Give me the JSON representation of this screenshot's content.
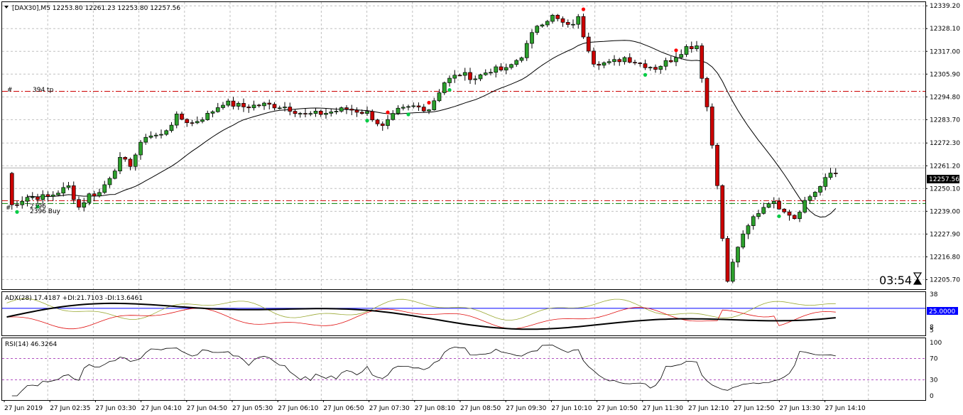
{
  "main_panel": {
    "header": "[DAX30],M5  12253.80 12261.23 12253.80 12257.56",
    "price_labels": [
      "12339.20",
      "12328.10",
      "12317.00",
      "12305.90",
      "12294.80",
      "12283.70",
      "12272.30",
      "12261.20",
      "12250.10",
      "12239.00",
      "12227.90",
      "12216.80",
      "12205.70"
    ],
    "current_price": "12257.56",
    "timer": "03:54",
    "line_labels": {
      "tp_hash": "#",
      "tp": "394 tp",
      "left_hash": "#",
      "left_a": "2396",
      "left_b": "2396 Buy"
    }
  },
  "adx_panel": {
    "header": "ADX(28) 17.4187 +DI:21.7103 -DI:13.6461",
    "scale": [
      "38",
      "23",
      "8",
      "5"
    ],
    "level": "25.0000"
  },
  "rsi_panel": {
    "header": "RSI(14) 46.3264",
    "scale": [
      "100",
      "70",
      "30",
      "0"
    ]
  },
  "time_axis": [
    "27 Jun 2019",
    "27 Jun 02:35",
    "27 Jun 03:30",
    "27 Jun 04:10",
    "27 Jun 04:50",
    "27 Jun 05:30",
    "27 Jun 06:10",
    "27 Jun 06:50",
    "27 Jun 07:30",
    "27 Jun 08:10",
    "27 Jun 08:50",
    "27 Jun 09:30",
    "27 Jun 10:10",
    "27 Jun 10:50",
    "27 Jun 11:30",
    "27 Jun 12:10",
    "27 Jun 12:50",
    "27 Jun 13:30",
    "27 Jun 14:10"
  ],
  "colors": {
    "bull": "#2ca02c",
    "bear": "#cc0000",
    "grid": "#c0c0c0",
    "adx": "#000000",
    "plus_di": "#9aa832",
    "minus_di": "#e01010",
    "level": "#0000ff",
    "tp_line": "#cc0000",
    "buy_line": "#008000"
  },
  "chart_data": {
    "type": "candlestick",
    "symbol": "DAX30",
    "timeframe": "M5",
    "y_range": [
      12201,
      12341
    ],
    "x_range": [
      "27 Jun 2019",
      "27 Jun 14:10"
    ],
    "levels": {
      "tp": 12297.5,
      "buy_a": 12244.2,
      "buy_b": 12242.8
    },
    "close_path": [
      [
        1,
        12242
      ],
      [
        4,
        12246
      ],
      [
        8,
        12246
      ],
      [
        12,
        12251
      ],
      [
        14,
        12241
      ],
      [
        16,
        12247
      ],
      [
        18,
        12248
      ],
      [
        22,
        12264
      ],
      [
        24,
        12262
      ],
      [
        27,
        12276
      ],
      [
        30,
        12276
      ],
      [
        33,
        12285
      ],
      [
        36,
        12282
      ],
      [
        39,
        12286
      ],
      [
        42,
        12292
      ],
      [
        46,
        12290
      ],
      [
        50,
        12291
      ],
      [
        54,
        12290
      ],
      [
        58,
        12286
      ],
      [
        62,
        12287
      ],
      [
        66,
        12289
      ],
      [
        70,
        12287
      ],
      [
        73,
        12280
      ],
      [
        76,
        12288
      ],
      [
        79,
        12290
      ],
      [
        82,
        12289
      ],
      [
        85,
        12302
      ],
      [
        88,
        12306
      ],
      [
        91,
        12304
      ],
      [
        94,
        12308
      ],
      [
        97,
        12308
      ],
      [
        100,
        12315
      ],
      [
        103,
        12330
      ],
      [
        106,
        12334
      ],
      [
        109,
        12329
      ],
      [
        111,
        12333
      ],
      [
        112,
        12325
      ],
      [
        114,
        12312
      ],
      [
        117,
        12311
      ],
      [
        120,
        12314
      ],
      [
        123,
        12311
      ],
      [
        126,
        12309
      ],
      [
        129,
        12313
      ],
      [
        132,
        12319
      ],
      [
        134,
        12320
      ],
      [
        136,
        12290
      ],
      [
        138,
        12253
      ],
      [
        139,
        12225
      ],
      [
        140,
        12205
      ],
      [
        142,
        12222
      ],
      [
        145,
        12236
      ],
      [
        148,
        12244
      ],
      [
        151,
        12240
      ],
      [
        153,
        12236
      ],
      [
        155,
        12244
      ],
      [
        158,
        12251
      ],
      [
        160,
        12257.56
      ]
    ],
    "adx_range": [
      0,
      40
    ],
    "rsi_range": [
      0,
      100
    ],
    "rsi_levels": [
      30,
      70
    ]
  }
}
